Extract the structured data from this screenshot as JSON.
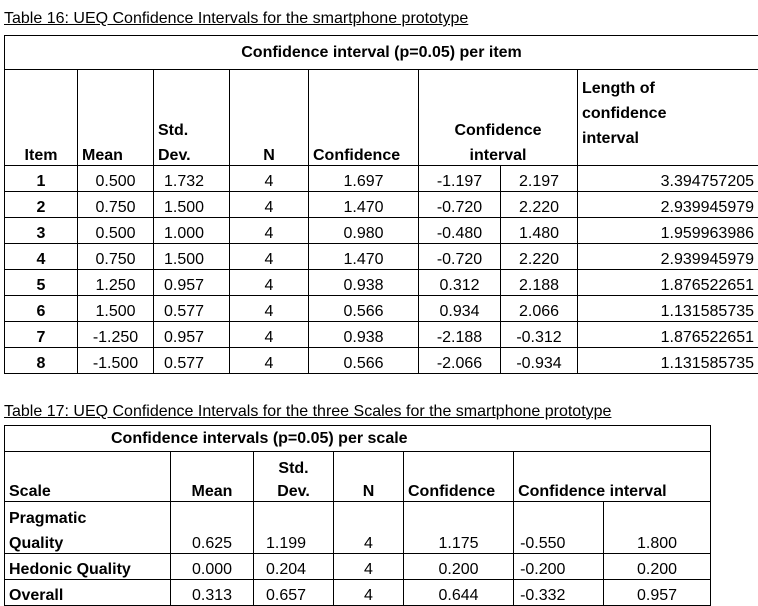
{
  "table16": {
    "caption": "Table 16: UEQ Confidence Intervals for the smartphone prototype",
    "title": "Confidence interval (p=0.05) per item",
    "headers": {
      "item": "Item",
      "mean": "Mean",
      "std_line1": "Std.",
      "std_line2": "Dev.",
      "n": "N",
      "confidence": "Confidence",
      "interval_line1": "Confidence",
      "interval_line2": "interval",
      "length_line1": "Length of",
      "length_line2": "confidence",
      "length_line3": "interval"
    },
    "rows": [
      {
        "item": "1",
        "mean": "0.500",
        "std": "1.732",
        "n": "4",
        "confidence": "1.697",
        "low": "-1.197",
        "high": "2.197",
        "length": "3.394757205"
      },
      {
        "item": "2",
        "mean": "0.750",
        "std": "1.500",
        "n": "4",
        "confidence": "1.470",
        "low": "-0.720",
        "high": "2.220",
        "length": "2.939945979"
      },
      {
        "item": "3",
        "mean": "0.500",
        "std": "1.000",
        "n": "4",
        "confidence": "0.980",
        "low": "-0.480",
        "high": "1.480",
        "length": "1.959963986"
      },
      {
        "item": "4",
        "mean": "0.750",
        "std": "1.500",
        "n": "4",
        "confidence": "1.470",
        "low": "-0.720",
        "high": "2.220",
        "length": "2.939945979"
      },
      {
        "item": "5",
        "mean": "1.250",
        "std": "0.957",
        "n": "4",
        "confidence": "0.938",
        "low": "0.312",
        "high": "2.188",
        "length": "1.876522651"
      },
      {
        "item": "6",
        "mean": "1.500",
        "std": "0.577",
        "n": "4",
        "confidence": "0.566",
        "low": "0.934",
        "high": "2.066",
        "length": "1.131585735"
      },
      {
        "item": "7",
        "mean": "-1.250",
        "std": "0.957",
        "n": "4",
        "confidence": "0.938",
        "low": "-2.188",
        "high": "-0.312",
        "length": "1.876522651"
      },
      {
        "item": "8",
        "mean": "-1.500",
        "std": "0.577",
        "n": "4",
        "confidence": "0.566",
        "low": "-2.066",
        "high": "-0.934",
        "length": "1.131585735"
      }
    ]
  },
  "table17": {
    "caption": "Table 17:  UEQ Confidence Intervals for the three Scales for the smartphone prototype",
    "title": "Confidence intervals (p=0.05) per scale",
    "headers": {
      "scale": "Scale",
      "mean": "Mean",
      "std_line1": "Std.",
      "std_line2": "Dev.",
      "n": "N",
      "confidence": "Confidence",
      "interval": "Confidence interval"
    },
    "rows": [
      {
        "scale_line1": "Pragmatic",
        "scale_line2": "Quality",
        "mean": "0.625",
        "std": "1.199",
        "n": "4",
        "confidence": "1.175",
        "low": "-0.550",
        "high": "1.800"
      },
      {
        "scale_line1": "",
        "scale_line2": "Hedonic Quality",
        "mean": "0.000",
        "std": "0.204",
        "n": "4",
        "confidence": "0.200",
        "low": "-0.200",
        "high": "0.200"
      },
      {
        "scale_line1": "",
        "scale_line2": "Overall",
        "mean": "0.313",
        "std": "0.657",
        "n": "4",
        "confidence": "0.644",
        "low": "-0.332",
        "high": "0.957"
      }
    ]
  }
}
